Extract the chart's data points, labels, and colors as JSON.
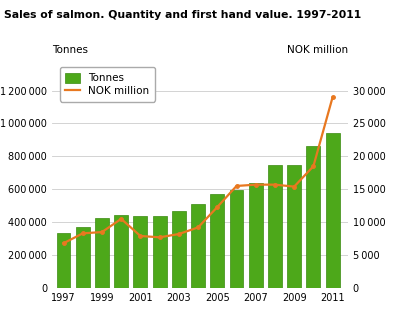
{
  "title": "Sales of salmon. Quantity and first hand value. 1997-2011",
  "years": [
    1997,
    1998,
    1999,
    2000,
    2001,
    2002,
    2003,
    2004,
    2005,
    2006,
    2007,
    2008,
    2009,
    2010,
    2011
  ],
  "tonnes": [
    335000,
    368000,
    425000,
    445000,
    438000,
    438000,
    465000,
    510000,
    570000,
    595000,
    635000,
    750000,
    745000,
    860000,
    940000
  ],
  "nok_million": [
    6800,
    8300,
    8500,
    10500,
    7900,
    7700,
    8200,
    9200,
    12300,
    15500,
    15700,
    15700,
    15400,
    18500,
    29000
  ],
  "bar_color": "#4da81a",
  "bar_edge_color": "#3a8a10",
  "line_color": "#e87820",
  "label_left": "Tonnes",
  "label_right": "NOK million",
  "ylim_left": [
    0,
    1400000
  ],
  "ylim_right": [
    0,
    35000
  ],
  "yticks_left": [
    0,
    200000,
    400000,
    600000,
    800000,
    1000000,
    1200000
  ],
  "yticks_right": [
    0,
    5000,
    10000,
    15000,
    20000,
    25000,
    30000
  ],
  "xticks": [
    1997,
    1999,
    2001,
    2003,
    2005,
    2007,
    2009,
    2011
  ],
  "bg_color": "#ffffff",
  "grid_color": "#cccccc",
  "title_fontsize": 7.8,
  "axis_fontsize": 7,
  "legend_fontsize": 7.5,
  "axlabel_fontsize": 7.5
}
